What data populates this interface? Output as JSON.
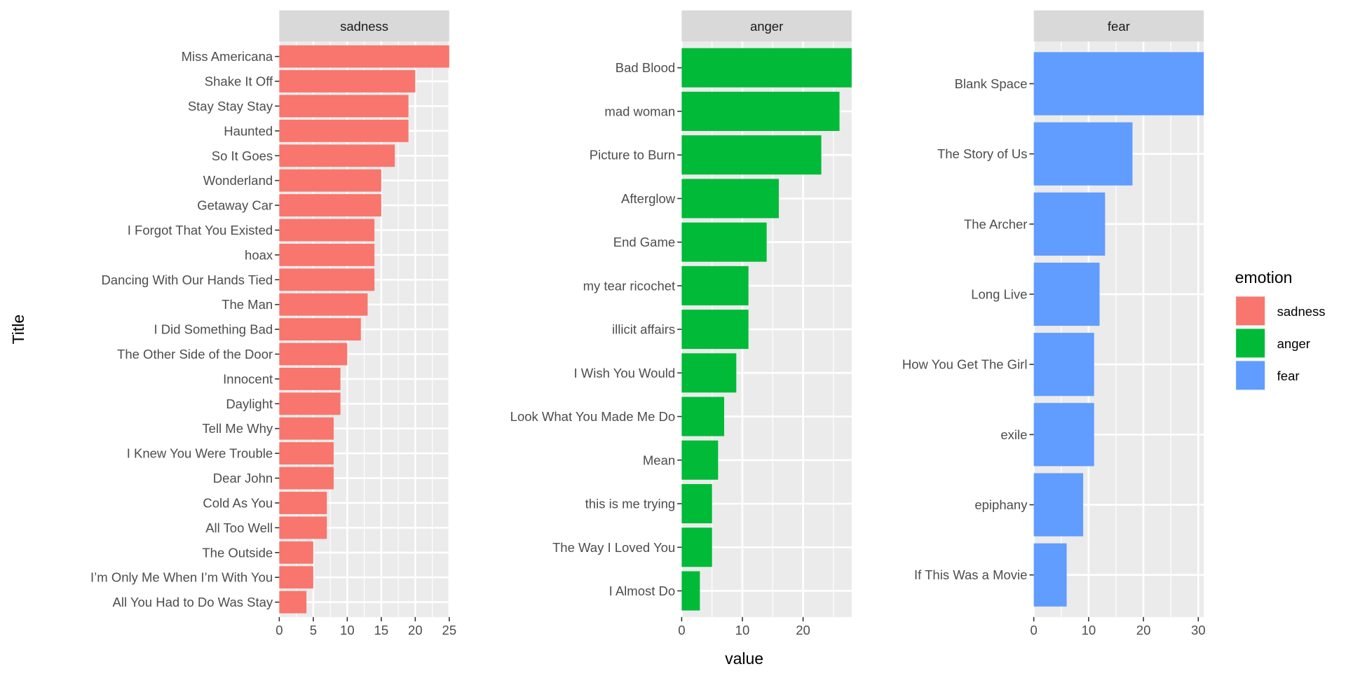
{
  "chart_data": {
    "type": "bar",
    "orientation": "horizontal",
    "ylabel": "Title",
    "xlabel": "value",
    "legend": {
      "title": "emotion",
      "position": "right",
      "entries": [
        "sadness",
        "anger",
        "fear"
      ]
    },
    "colors": {
      "sadness": "#F8766D",
      "anger": "#00BA38",
      "fear": "#619CFF"
    },
    "grid": true,
    "panels": [
      {
        "name": "sadness",
        "color": "#F8766D",
        "xlim": [
          0,
          25
        ],
        "xticks": [
          0,
          5,
          10,
          15,
          20,
          25
        ],
        "categories": [
          "Miss Americana",
          "Shake It Off",
          "Stay Stay Stay",
          "Haunted",
          "So It Goes",
          "Wonderland",
          "Getaway Car",
          "I Forgot That You Existed",
          "hoax",
          "Dancing With Our Hands Tied",
          "The Man",
          "I Did Something Bad",
          "The Other Side of the Door",
          "Innocent",
          "Daylight",
          "Tell Me Why",
          "I Knew You Were Trouble",
          "Dear John",
          "Cold As You",
          "All Too Well",
          "The Outside",
          "I’m Only Me When I’m With You",
          "All You Had to Do Was Stay"
        ],
        "values": [
          25,
          20,
          19,
          19,
          17,
          15,
          15,
          14,
          14,
          14,
          13,
          12,
          10,
          9,
          9,
          8,
          8,
          8,
          7,
          7,
          5,
          5,
          4
        ]
      },
      {
        "name": "anger",
        "color": "#00BA38",
        "xlim": [
          0,
          28
        ],
        "xticks": [
          0,
          10,
          20
        ],
        "categories": [
          "Bad Blood",
          "mad woman",
          "Picture to Burn",
          "Afterglow",
          "End Game",
          "my tear ricochet",
          "illicit affairs",
          "I Wish You Would",
          "Look What You Made Me Do",
          "Mean",
          "this is me trying",
          "The Way I Loved You",
          "I Almost Do"
        ],
        "values": [
          28,
          26,
          23,
          16,
          14,
          11,
          11,
          9,
          7,
          6,
          5,
          5,
          3
        ]
      },
      {
        "name": "fear",
        "color": "#619CFF",
        "xlim": [
          0,
          31
        ],
        "xticks": [
          0,
          10,
          20,
          30
        ],
        "categories": [
          "Blank Space",
          "The Story of Us",
          "The Archer",
          "Long Live",
          "How You Get The Girl",
          "exile",
          "epiphany",
          "If This Was a Movie"
        ],
        "values": [
          31,
          18,
          13,
          12,
          11,
          11,
          9,
          6
        ]
      }
    ]
  }
}
